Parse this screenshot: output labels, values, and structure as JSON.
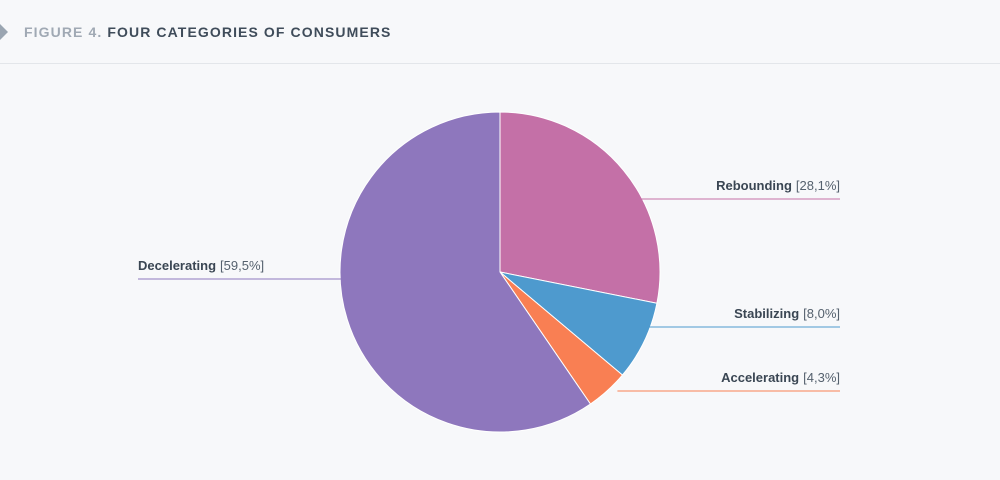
{
  "header": {
    "figure_number": "FIGURE 4.",
    "title": "FOUR CATEGORIES OF CONSUMERS"
  },
  "chart_data": {
    "type": "pie",
    "title": "FOUR CATEGORIES OF CONSUMERS",
    "start_angle_deg": 0,
    "direction": "clockwise",
    "slices": [
      {
        "label": "Rebounding",
        "value": 28.1,
        "value_text": "[28,1%]",
        "color": "#c470a7",
        "label_side": "right"
      },
      {
        "label": "Stabilizing",
        "value": 8.0,
        "value_text": "[8,0%]",
        "color": "#4e9ace",
        "label_side": "right"
      },
      {
        "label": "Accelerating",
        "value": 4.3,
        "value_text": "[4,3%]",
        "color": "#f97f53",
        "label_side": "right"
      },
      {
        "label": "Decelerating",
        "value": 59.5,
        "value_text": "[59,5%]",
        "color": "#8e77bd",
        "label_side": "left"
      }
    ]
  }
}
